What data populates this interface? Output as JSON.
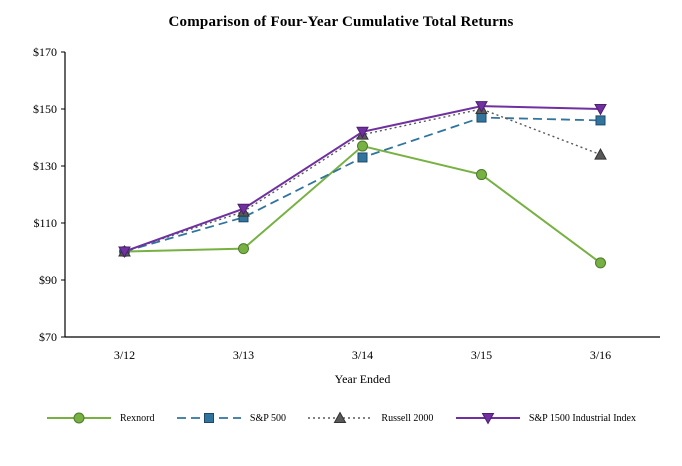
{
  "title": "Comparison of Four-Year Cumulative Total Returns",
  "chart_data": {
    "type": "line",
    "title": "Comparison of Four-Year Cumulative Total Returns",
    "xlabel": "Year Ended",
    "ylabel": "",
    "categories": [
      "3/12",
      "3/13",
      "3/14",
      "3/15",
      "3/16"
    ],
    "ylim": [
      70,
      170
    ],
    "ytick_step": 20,
    "ytick_labels": [
      "$70",
      "$90",
      "$110",
      "$130",
      "$150",
      "$170"
    ],
    "grid": false,
    "legend_position": "bottom",
    "series": [
      {
        "name": "Rexnord",
        "values": [
          100,
          101,
          137,
          127,
          96
        ],
        "color": "#77b143",
        "marker_stroke": "#4e7a2a",
        "line": "solid",
        "marker": "circle"
      },
      {
        "name": "S&P 500",
        "values": [
          100,
          112,
          133,
          147,
          146
        ],
        "color": "#31749e",
        "marker_stroke": "#1f4a66",
        "line": "dashed",
        "marker": "square"
      },
      {
        "name": "Russell 2000",
        "values": [
          100,
          114,
          141,
          150,
          134
        ],
        "color": "#595959",
        "marker_stroke": "#333333",
        "line": "dotted",
        "marker": "triangle-up"
      },
      {
        "name": "S&P 1500 Industrial Index",
        "values": [
          100,
          115,
          142,
          151,
          150
        ],
        "color": "#7030a0",
        "marker_stroke": "#4c1f70",
        "line": "solid",
        "marker": "triangle-down"
      }
    ]
  }
}
